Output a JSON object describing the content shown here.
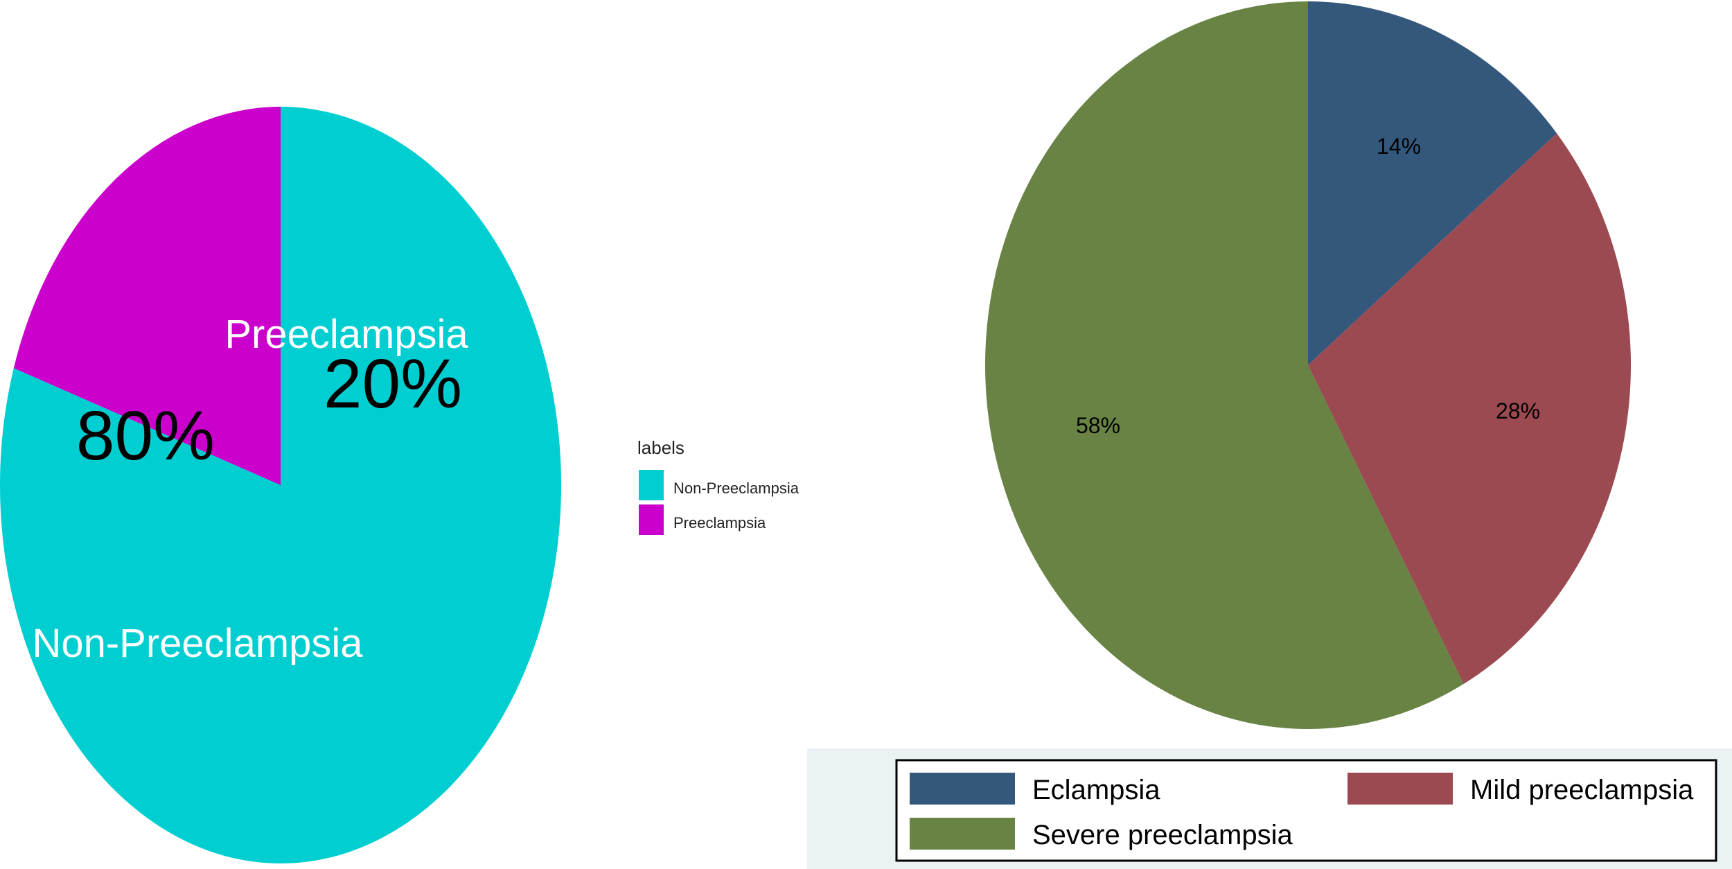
{
  "chart_data": [
    {
      "type": "pie",
      "categories": [
        "Non-Preeclampsia",
        "Preeclampsia"
      ],
      "values": [
        80,
        20
      ],
      "value_labels": [
        "80%",
        "20%"
      ],
      "colors": [
        "#00CED1",
        "#CC00CC"
      ],
      "legend": {
        "title": "labels",
        "placement": "right",
        "entries": [
          "Non-Preeclampsia",
          "Preeclampsia"
        ]
      }
    },
    {
      "type": "pie",
      "categories": [
        "Eclampsia",
        "Mild preeclampsia",
        "Severe preeclampsia"
      ],
      "values": [
        14,
        28,
        58
      ],
      "value_labels": [
        "14%",
        "28%",
        "58%"
      ],
      "colors": [
        "#34587C",
        "#9A4A50",
        "#688344"
      ],
      "legend": {
        "placement": "bottom",
        "entries": [
          "Eclampsia",
          "Mild preeclampsia",
          "Severe preeclampsia"
        ]
      }
    }
  ]
}
